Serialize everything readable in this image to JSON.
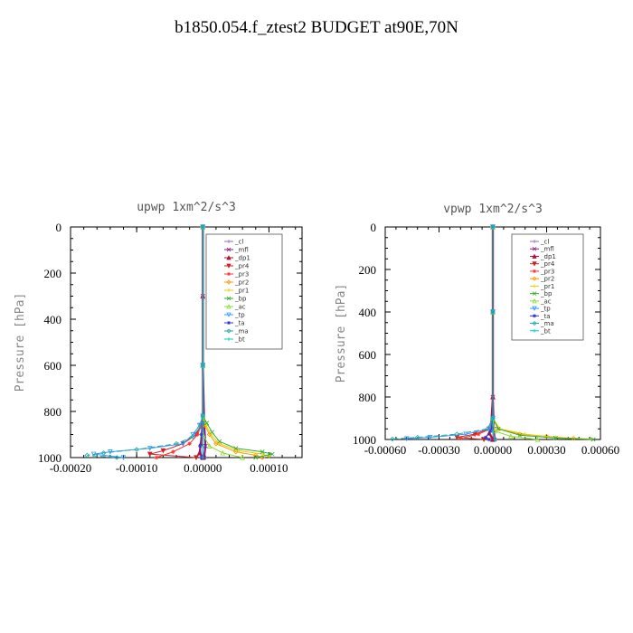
{
  "title": "b1850.054.f_ztest2  BUDGET at90E,70N",
  "chart_data": [
    {
      "type": "line",
      "title": "upwp   1xm^2/s^3",
      "xlabel": "",
      "ylabel": "Pressure  [hPa]",
      "xlim": [
        -0.0002,
        0.00015
      ],
      "ylim": [
        1000,
        0
      ],
      "x_ticks": [
        -0.0002,
        -0.0001,
        0.0,
        0.0001
      ],
      "x_tick_labels": [
        "-0.00020",
        "-0.00010",
        "0.00000",
        "0.00010"
      ],
      "y_ticks": [
        0,
        200,
        400,
        600,
        800,
        1000
      ],
      "y_tick_labels": [
        "0",
        "200",
        "400",
        "600",
        "800",
        "1000"
      ],
      "legend_position": "top-right",
      "series": [
        {
          "name": "_cl",
          "color": "#9b6bb5",
          "points": [
            [
              0,
              0
            ],
            [
              0,
              300
            ],
            [
              0,
              600
            ],
            [
              0,
              850
            ],
            [
              0,
              950
            ],
            [
              0,
              1000
            ]
          ]
        },
        {
          "name": "_mfl",
          "color": "#8a1a8a",
          "points": [
            [
              0,
              0
            ],
            [
              0,
              300
            ],
            [
              0,
              600
            ],
            [
              2e-06,
              850
            ],
            [
              4e-06,
              950
            ],
            [
              2e-06,
              1000
            ]
          ]
        },
        {
          "name": "_dp1",
          "color": "#b0103a",
          "points": [
            [
              0,
              0
            ],
            [
              0,
              300
            ],
            [
              0,
              600
            ],
            [
              0,
              850
            ],
            [
              -3e-06,
              940
            ],
            [
              -5e-06,
              980
            ],
            [
              0,
              1000
            ]
          ]
        },
        {
          "name": "_pr4",
          "color": "#cc2222",
          "points": [
            [
              0,
              0
            ],
            [
              0,
              600
            ],
            [
              0,
              820
            ],
            [
              -3e-06,
              860
            ],
            [
              -1e-05,
              900
            ],
            [
              -3e-05,
              940
            ],
            [
              -6e-05,
              970
            ],
            [
              -8e-05,
              985
            ],
            [
              -1e-05,
              1000
            ]
          ]
        },
        {
          "name": "_pr3",
          "color": "#ff3333",
          "points": [
            [
              0,
              0
            ],
            [
              0,
              600
            ],
            [
              0,
              820
            ],
            [
              -2e-06,
              860
            ],
            [
              -8e-06,
              900
            ],
            [
              -2e-05,
              940
            ],
            [
              -4.5e-05,
              975
            ],
            [
              -7e-05,
              1000
            ]
          ]
        },
        {
          "name": "_pr2",
          "color": "#ff9900",
          "points": [
            [
              0,
              0
            ],
            [
              0,
              600
            ],
            [
              0,
              820
            ],
            [
              3e-06,
              860
            ],
            [
              1e-05,
              900
            ],
            [
              2e-05,
              940
            ],
            [
              5e-05,
              975
            ],
            [
              8e-05,
              990
            ],
            [
              9e-05,
              1000
            ]
          ]
        },
        {
          "name": "_pr1",
          "color": "#e6d000",
          "points": [
            [
              0,
              0
            ],
            [
              0,
              600
            ],
            [
              0,
              820
            ],
            [
              5e-06,
              860
            ],
            [
              1.2e-05,
              900
            ],
            [
              2.5e-05,
              940
            ],
            [
              5.5e-05,
              970
            ],
            [
              9e-05,
              985
            ],
            [
              0.0001,
              995
            ]
          ]
        },
        {
          "name": "_bp",
          "color": "#33aa33",
          "points": [
            [
              0,
              0
            ],
            [
              0,
              600
            ],
            [
              0,
              820
            ],
            [
              6e-06,
              850
            ],
            [
              1.4e-05,
              890
            ],
            [
              2.5e-05,
              930
            ],
            [
              5e-05,
              960
            ],
            [
              9e-05,
              975
            ],
            [
              0.000105,
              985
            ],
            [
              8e-05,
              1000
            ]
          ]
        },
        {
          "name": "_ac",
          "color": "#88dd33",
          "points": [
            [
              0,
              0
            ],
            [
              0,
              600
            ],
            [
              0,
              820
            ],
            [
              0,
              900
            ],
            [
              1e-05,
              950
            ],
            [
              3e-05,
              980
            ],
            [
              6e-05,
              1000
            ]
          ]
        },
        {
          "name": "_tp",
          "color": "#3399ff",
          "points": [
            [
              0,
              0
            ],
            [
              0,
              600
            ],
            [
              0,
              820
            ],
            [
              -5e-06,
              860
            ],
            [
              -1.5e-05,
              900
            ],
            [
              -3e-05,
              940
            ],
            [
              -8e-05,
              960
            ],
            [
              -0.00014,
              975
            ],
            [
              -0.000165,
              985
            ],
            [
              -0.00012,
              1000
            ]
          ]
        },
        {
          "name": "_ta",
          "color": "#3333cc",
          "points": [
            [
              0,
              0
            ],
            [
              0,
              600
            ],
            [
              0,
              850
            ],
            [
              -2e-06,
              900
            ],
            [
              -4e-06,
              950
            ],
            [
              -2e-06,
              1000
            ]
          ]
        },
        {
          "name": "_ma",
          "color": "#22aaaa",
          "points": [
            [
              0,
              0
            ],
            [
              0,
              600
            ],
            [
              0,
              820
            ],
            [
              -5e-06,
              870
            ],
            [
              -1.5e-05,
              910
            ],
            [
              -4e-05,
              940
            ],
            [
              -0.0001,
              965
            ],
            [
              -0.00015,
              980
            ],
            [
              -0.000175,
              990
            ],
            [
              -0.00013,
              1000
            ]
          ]
        },
        {
          "name": "_bt",
          "color": "#00cccc",
          "points": [
            [
              0,
              0
            ],
            [
              0,
              600
            ],
            [
              0,
              850
            ],
            [
              0,
              950
            ],
            [
              0,
              1000
            ]
          ]
        }
      ]
    },
    {
      "type": "line",
      "title": "vpwp   1xm^2/s^3",
      "xlabel": "",
      "ylabel": "Pressure  [hPa]",
      "xlim": [
        -0.0006,
        0.0006
      ],
      "ylim": [
        1000,
        0
      ],
      "x_ticks": [
        -0.0006,
        -0.0003,
        0.0,
        0.0003,
        0.0006
      ],
      "x_tick_labels": [
        "-0.00060",
        "-0.00030",
        "0.00000",
        "0.00030",
        "0.00060"
      ],
      "y_ticks": [
        0,
        200,
        400,
        600,
        800,
        1000
      ],
      "y_tick_labels": [
        "0",
        "200",
        "400",
        "600",
        "800",
        "1000"
      ],
      "legend_position": "top-right",
      "series": [
        {
          "name": "_cl",
          "color": "#9b6bb5",
          "points": [
            [
              0,
              0
            ],
            [
              0,
              400
            ],
            [
              0,
              800
            ],
            [
              0,
              950
            ],
            [
              0,
              1000
            ]
          ]
        },
        {
          "name": "_mfl",
          "color": "#8a1a8a",
          "points": [
            [
              0,
              0
            ],
            [
              0,
              400
            ],
            [
              0,
              800
            ],
            [
              5e-06,
              950
            ],
            [
              1e-05,
              1000
            ]
          ]
        },
        {
          "name": "_dp1",
          "color": "#b0103a",
          "points": [
            [
              0,
              0
            ],
            [
              0,
              400
            ],
            [
              0,
              800
            ],
            [
              -1e-05,
              940
            ],
            [
              -2e-05,
              970
            ],
            [
              0,
              1000
            ]
          ]
        },
        {
          "name": "_pr4",
          "color": "#cc2222",
          "points": [
            [
              0,
              0
            ],
            [
              0,
              400
            ],
            [
              0,
              900
            ],
            [
              -2e-05,
              950
            ],
            [
              -0.0001,
              975
            ],
            [
              -0.0002,
              990
            ],
            [
              -5e-05,
              1000
            ]
          ]
        },
        {
          "name": "_pr3",
          "color": "#ff3333",
          "points": [
            [
              0,
              0
            ],
            [
              0,
              400
            ],
            [
              0,
              900
            ],
            [
              -1.5e-05,
              950
            ],
            [
              -8e-05,
              975
            ],
            [
              -0.00018,
              995
            ]
          ]
        },
        {
          "name": "_pr2",
          "color": "#ff9900",
          "points": [
            [
              0,
              0
            ],
            [
              0,
              400
            ],
            [
              0,
              900
            ],
            [
              3e-05,
              950
            ],
            [
              0.00015,
              975
            ],
            [
              0.0003,
              985
            ],
            [
              0.00045,
              995
            ]
          ]
        },
        {
          "name": "_pr1",
          "color": "#e6d000",
          "points": [
            [
              0,
              0
            ],
            [
              0,
              400
            ],
            [
              0,
              900
            ],
            [
              4e-05,
              950
            ],
            [
              0.00018,
              975
            ],
            [
              0.00035,
              990
            ],
            [
              0.00055,
              998
            ]
          ]
        },
        {
          "name": "_bp",
          "color": "#33aa33",
          "points": [
            [
              0,
              0
            ],
            [
              0,
              400
            ],
            [
              0,
              900
            ],
            [
              3e-05,
              950
            ],
            [
              0.00015,
              980
            ],
            [
              0.00035,
              993
            ],
            [
              0.00056,
              1000
            ]
          ]
        },
        {
          "name": "_ac",
          "color": "#88dd33",
          "points": [
            [
              0,
              0
            ],
            [
              0,
              400
            ],
            [
              0,
              900
            ],
            [
              1e-05,
              960
            ],
            [
              0.0001,
              985
            ],
            [
              0.00025,
              1000
            ]
          ]
        },
        {
          "name": "_tp",
          "color": "#3399ff",
          "points": [
            [
              0,
              0
            ],
            [
              0,
              400
            ],
            [
              0,
              900
            ],
            [
              -2e-05,
              950
            ],
            [
              -0.00015,
              975
            ],
            [
              -0.00035,
              990
            ],
            [
              -0.00048,
              996
            ]
          ]
        },
        {
          "name": "_ta",
          "color": "#3333cc",
          "points": [
            [
              0,
              0
            ],
            [
              0,
              400
            ],
            [
              0,
              900
            ],
            [
              -1e-05,
              960
            ],
            [
              -4e-05,
              990
            ],
            [
              -2e-05,
              1000
            ]
          ]
        },
        {
          "name": "_ma",
          "color": "#22aaaa",
          "points": [
            [
              0,
              0
            ],
            [
              0,
              400
            ],
            [
              0,
              900
            ],
            [
              -3e-05,
              950
            ],
            [
              -0.0002,
              975
            ],
            [
              -0.00042,
              990
            ],
            [
              -0.00056,
              998
            ]
          ]
        },
        {
          "name": "_bt",
          "color": "#00cccc",
          "points": [
            [
              0,
              0
            ],
            [
              0,
              400
            ],
            [
              0,
              900
            ],
            [
              0,
              960
            ],
            [
              1e-05,
              1000
            ]
          ]
        }
      ]
    }
  ]
}
